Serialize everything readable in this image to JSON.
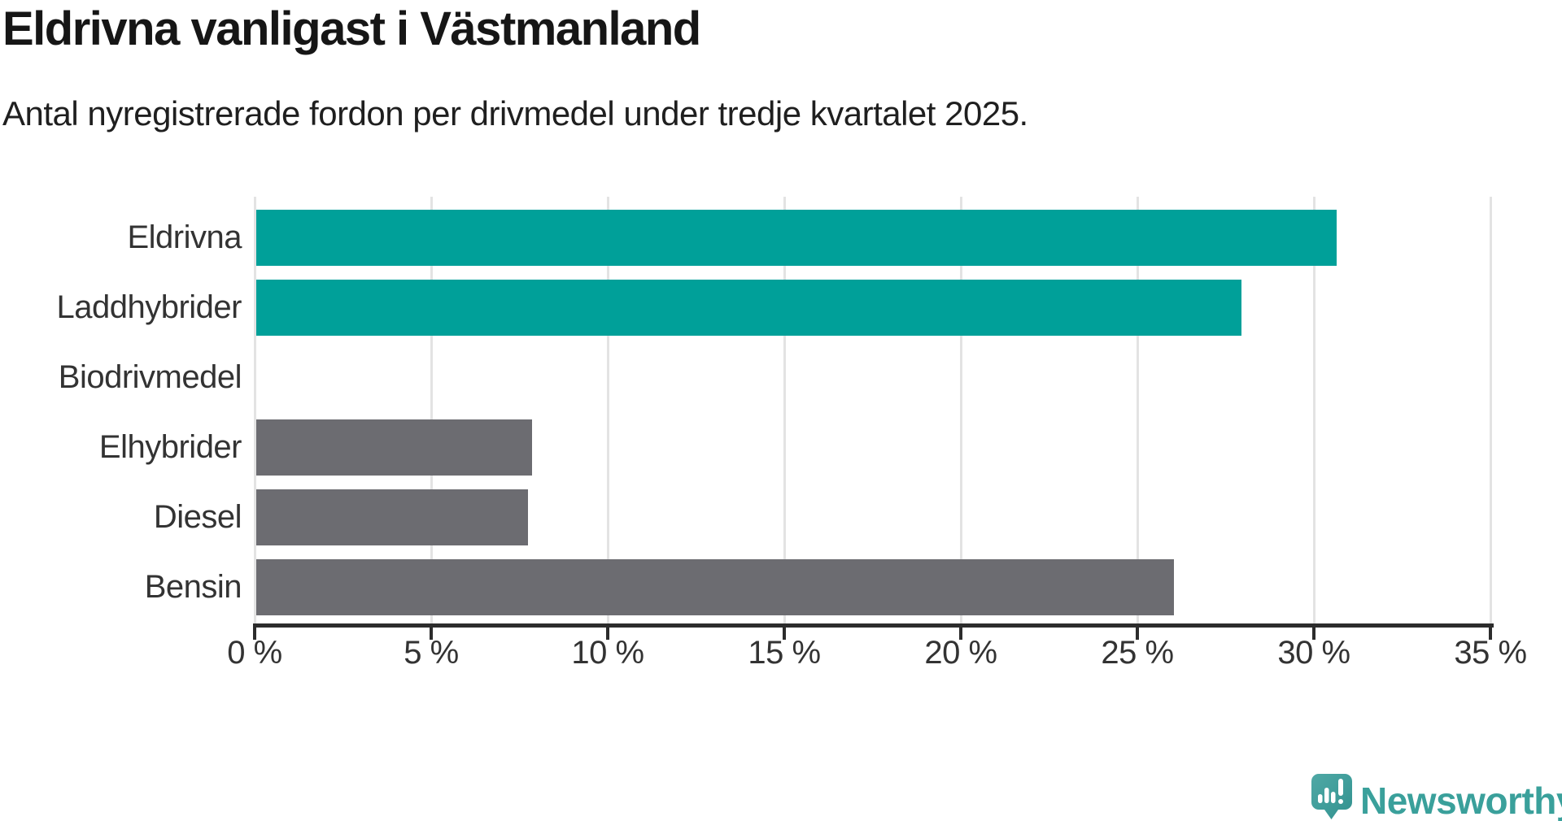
{
  "header": {
    "title": "Eldrivna vanligast i Västmanland",
    "subtitle": "Antal nyregistrerade fordon per drivmedel under tredje kvartalet 2025."
  },
  "chart_data": {
    "type": "bar",
    "orientation": "horizontal",
    "title": "Eldrivna vanligast i Västmanland",
    "subtitle": "Antal nyregistrerade fordon per drivmedel under tredje kvartalet 2025.",
    "categories": [
      "Eldrivna",
      "Laddhybrider",
      "Biodrivmedel",
      "Elhybrider",
      "Diesel",
      "Bensin"
    ],
    "values": [
      30.6,
      27.9,
      0,
      7.8,
      7.7,
      26.0
    ],
    "unit": "%",
    "bar_colors": [
      "#00a099",
      "#00a099",
      "#6c6c71",
      "#6c6c71",
      "#6c6c71",
      "#6c6c71"
    ],
    "highlight_color": "#00a099",
    "default_color": "#6c6c71",
    "xlim": [
      0,
      35
    ],
    "x_ticks": [
      0,
      5,
      10,
      15,
      20,
      25,
      30,
      35
    ],
    "x_tick_labels": [
      "0 %",
      "5 %",
      "10 %",
      "15 %",
      "20 %",
      "25 %",
      "30 %",
      "35 %"
    ],
    "grid": "vertical-gridlines-on",
    "legend": "none"
  },
  "branding": {
    "logo_text": "Newsworthy",
    "logo_color": "#3aa09b",
    "logo_icon": "newsworthy-speech-bubble-bar-chart-icon"
  }
}
